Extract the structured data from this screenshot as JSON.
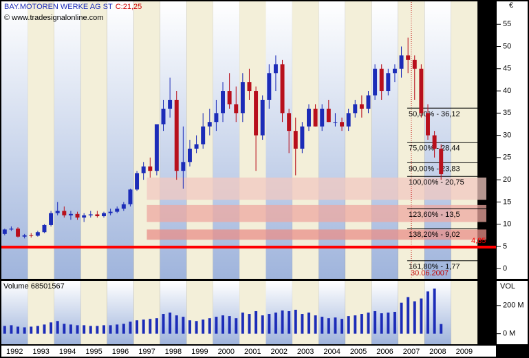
{
  "chart_data": {
    "type": "candlestick",
    "title": "BAY.MOTOREN WERKE AG ST",
    "close_label": "C:21,25",
    "source": "© www.tradesignalonline.com",
    "currency": "€",
    "up_color": "#1c2cb8",
    "down_color": "#b8101c",
    "xlim": [
      1992,
      2010.7
    ],
    "xticks": [
      1992,
      1993,
      1994,
      1995,
      1996,
      1997,
      1998,
      1999,
      2000,
      2001,
      2002,
      2003,
      2004,
      2005,
      2006,
      2007,
      2008,
      2009
    ],
    "ylim": [
      -2.3,
      60
    ],
    "yticks": [
      0,
      5,
      10,
      15,
      20,
      25,
      30,
      35,
      40,
      45,
      50,
      55
    ],
    "x": [
      1992.125,
      1992.375,
      1992.625,
      1992.875,
      1993.125,
      1993.375,
      1993.625,
      1993.875,
      1994.125,
      1994.375,
      1994.625,
      1994.875,
      1995.125,
      1995.375,
      1995.625,
      1995.875,
      1996.125,
      1996.375,
      1996.625,
      1996.875,
      1997.125,
      1997.375,
      1997.625,
      1997.875,
      1998.125,
      1998.375,
      1998.625,
      1998.875,
      1999.125,
      1999.375,
      1999.625,
      1999.875,
      2000.125,
      2000.375,
      2000.625,
      2000.875,
      2001.125,
      2001.375,
      2001.625,
      2001.875,
      2002.125,
      2002.375,
      2002.625,
      2002.875,
      2003.125,
      2003.375,
      2003.625,
      2003.875,
      2004.125,
      2004.375,
      2004.625,
      2004.875,
      2005.125,
      2005.375,
      2005.625,
      2005.875,
      2006.125,
      2006.375,
      2006.625,
      2006.875,
      2007.125,
      2007.375,
      2007.625,
      2007.875,
      2008.125,
      2008.375,
      2008.625
    ],
    "open": [
      7.8,
      8.8,
      9.0,
      7.2,
      7.5,
      7.4,
      8.2,
      9.8,
      12.5,
      13,
      12,
      12.3,
      11.5,
      12,
      12.2,
      11.8,
      12.5,
      12.8,
      13.5,
      14.5,
      17.8,
      21.5,
      23,
      22,
      32.5,
      36,
      38,
      22,
      24,
      27,
      28,
      32,
      33,
      35,
      40,
      37,
      35,
      42,
      40,
      30,
      38,
      44,
      46,
      35,
      31,
      27,
      32,
      36,
      32,
      36,
      33,
      33,
      32,
      35,
      37,
      36,
      39,
      45,
      40,
      44,
      45,
      48,
      47,
      45,
      35,
      30,
      27
    ],
    "high": [
      9,
      9.5,
      9.3,
      7.8,
      8,
      8.5,
      10,
      13,
      15,
      14,
      13,
      12.8,
      12.5,
      13,
      13,
      12.8,
      13.5,
      14,
      15,
      18,
      22,
      24,
      25,
      32,
      38,
      43,
      40,
      32,
      29,
      30,
      35,
      36,
      38,
      42,
      44,
      41,
      44,
      45,
      41,
      39,
      46,
      48,
      47,
      36,
      34,
      33,
      37,
      37,
      37,
      38,
      35,
      34,
      36,
      38,
      39,
      40,
      46,
      46,
      45,
      46,
      50,
      52,
      48,
      46,
      37,
      31,
      28
    ],
    "low": [
      7.5,
      8.5,
      7,
      6.8,
      7,
      7.2,
      8,
      9.5,
      12,
      11.5,
      11,
      11,
      10.5,
      11.5,
      11.5,
      11.5,
      12,
      12.5,
      13,
      14,
      17.5,
      20,
      20.5,
      21,
      31,
      34,
      20,
      18,
      23,
      26,
      27,
      30,
      31,
      33,
      36,
      33,
      33,
      38,
      22,
      29,
      36,
      40,
      33,
      26,
      21,
      26,
      31,
      32,
      31,
      33,
      32,
      31,
      31,
      34,
      34,
      35,
      38,
      38,
      39,
      42,
      43,
      44,
      38,
      34,
      29,
      25,
      20
    ],
    "close": [
      8.8,
      9.0,
      7.2,
      7.5,
      7.4,
      8.2,
      9.8,
      12.5,
      13,
      12,
      12.3,
      11.5,
      12,
      12.2,
      11.8,
      12.5,
      12.8,
      13.5,
      14.5,
      17.8,
      21.5,
      23,
      22,
      32.5,
      36,
      38,
      22,
      24,
      27,
      28,
      32,
      33,
      35,
      40,
      37,
      35,
      42,
      40,
      30,
      38,
      44,
      46,
      35,
      31,
      27,
      32,
      36,
      32,
      36,
      33,
      33,
      32,
      35,
      37,
      36,
      39,
      45,
      40,
      44,
      45,
      48,
      47,
      45,
      35,
      30,
      27,
      21.25
    ],
    "zones": [
      {
        "from": 15.5,
        "to": 20.5,
        "color": "#f2c8c0"
      },
      {
        "from": 10.5,
        "to": 14.3,
        "color": "#eea8a0"
      },
      {
        "from": 6.5,
        "to": 8.8,
        "color": "#ea8f88"
      }
    ],
    "zones_start": 1997.5,
    "fib_levels": [
      {
        "label": "50,00% - 36,12",
        "value": 36.12
      },
      {
        "label": "75,00% - 28,44",
        "value": 28.44
      },
      {
        "label": "90,00% - 23,83",
        "value": 23.83
      },
      {
        "label": "100,00% - 20,75",
        "value": 20.75
      },
      {
        "label": "123,60% - 13,5",
        "value": 13.5
      },
      {
        "label": "138,20% - 9,02",
        "value": 9.02
      },
      {
        "label": "161,80% - 1,77",
        "value": 1.77
      }
    ],
    "support": {
      "value": 4.85,
      "label": "4,85",
      "color": "#ff0000"
    },
    "marker": {
      "x": 2007.5,
      "label": "30.06.2007"
    },
    "volume": {
      "title": "Volume 68501567",
      "axis_title": "VOL",
      "color": "#1c2cb8",
      "ylim": [
        -75,
        375
      ],
      "yticks": [
        {
          "value": 0,
          "label": "0 M"
        },
        {
          "value": 200,
          "label": "200 M"
        }
      ],
      "values": [
        55,
        60,
        50,
        45,
        50,
        55,
        65,
        80,
        90,
        70,
        65,
        60,
        60,
        55,
        55,
        60,
        60,
        65,
        70,
        85,
        95,
        100,
        105,
        110,
        140,
        150,
        130,
        120,
        95,
        90,
        100,
        110,
        120,
        130,
        125,
        110,
        150,
        140,
        160,
        130,
        140,
        150,
        165,
        160,
        170,
        140,
        150,
        130,
        120,
        110,
        115,
        105,
        125,
        130,
        140,
        150,
        160,
        145,
        150,
        155,
        220,
        260,
        230,
        250,
        300,
        320,
        68.501567
      ]
    }
  }
}
